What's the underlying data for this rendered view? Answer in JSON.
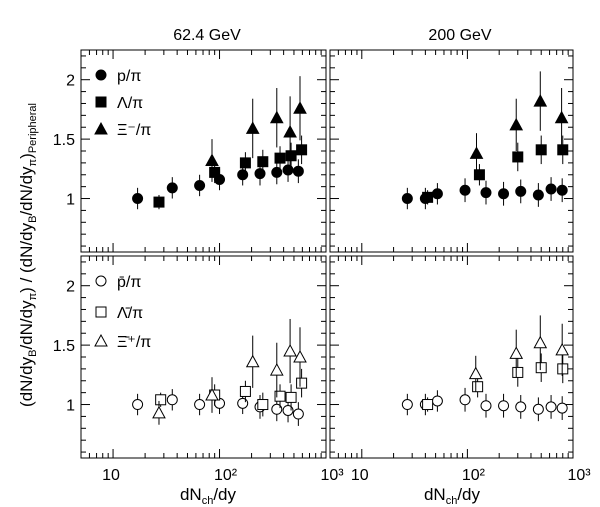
{
  "figure": {
    "ylabel_main": "(dN/dy",
    "ylabel_sub_B": "B",
    "ylabel_mid": "/dN/dy",
    "ylabel_sub_pi": "π",
    "ylabel_mid2": ") / (dN/dy",
    "ylabel_sub_B2": "B",
    "ylabel_mid3": "/dN/dy",
    "ylabel_sub_pi2": "π",
    "ylabel_end": ")",
    "ylabel_sub_periph": "Peripheral",
    "xlabel_main": "dN",
    "xlabel_sub": "ch",
    "xlabel_end": "/dy"
  },
  "chart_data": [
    {
      "type": "scatter",
      "panel": "top-left",
      "title": "62.4 GeV",
      "x_scale": "log",
      "xlim": [
        5,
        1000
      ],
      "ylim": [
        0.55,
        2.25
      ],
      "x_ticks": [
        "10",
        "10²",
        "10³"
      ],
      "y_ticks": [
        "1",
        "1.5",
        "2"
      ],
      "legend_placement": "top-left",
      "series": [
        {
          "name": "p/π",
          "marker": "filled-circle",
          "x": [
            17,
            36,
            65,
            100,
            165,
            240,
            345,
            440,
            550
          ],
          "y": [
            1.0,
            1.09,
            1.11,
            1.16,
            1.2,
            1.21,
            1.22,
            1.24,
            1.23
          ],
          "err": [
            0.09,
            0.09,
            0.09,
            0.09,
            0.09,
            0.1,
            0.1,
            0.1,
            0.1
          ]
        },
        {
          "name": "Λ/π",
          "marker": "filled-square",
          "x": [
            27,
            90,
            175,
            255,
            370,
            470,
            590
          ],
          "y": [
            0.97,
            1.22,
            1.3,
            1.31,
            1.34,
            1.36,
            1.41
          ],
          "err": [
            0.06,
            0.09,
            0.09,
            0.1,
            0.1,
            0.11,
            0.12
          ]
        },
        {
          "name": "Ξ⁻/π",
          "marker": "filled-triangle",
          "x": [
            85,
            205,
            345,
            460,
            570
          ],
          "y": [
            1.32,
            1.59,
            1.68,
            1.56,
            1.76
          ],
          "err": [
            0.18,
            0.25,
            0.25,
            0.3,
            0.27
          ]
        }
      ]
    },
    {
      "type": "scatter",
      "panel": "top-right",
      "title": "200 GeV",
      "x_scale": "log",
      "xlim": [
        5,
        1000
      ],
      "ylim": [
        0.55,
        2.25
      ],
      "x_ticks": [
        "10",
        "10²",
        "10³"
      ],
      "y_ticks": [
        "1",
        "1.5",
        "2"
      ],
      "series": [
        {
          "name": "p/π",
          "marker": "filled-circle",
          "x": [
            27,
            40,
            52,
            95,
            150,
            220,
            320,
            470,
            620,
            790
          ],
          "y": [
            1.0,
            1.0,
            1.04,
            1.07,
            1.05,
            1.04,
            1.06,
            1.03,
            1.08,
            1.07
          ],
          "err": [
            0.09,
            0.09,
            0.09,
            0.1,
            0.1,
            0.1,
            0.1,
            0.1,
            0.1,
            0.1
          ]
        },
        {
          "name": "Λ/π",
          "marker": "filled-square",
          "x": [
            42,
            130,
            300,
            500,
            800
          ],
          "y": [
            1.01,
            1.2,
            1.35,
            1.41,
            1.41
          ],
          "err": [
            0.06,
            0.09,
            0.12,
            0.12,
            0.12
          ]
        },
        {
          "name": "Ξ⁻/π",
          "marker": "filled-triangle",
          "x": [
            122,
            290,
            490,
            780
          ],
          "y": [
            1.38,
            1.62,
            1.82,
            1.68
          ],
          "err": [
            0.17,
            0.22,
            0.25,
            0.25
          ]
        }
      ]
    },
    {
      "type": "scatter",
      "panel": "bottom-left",
      "x_scale": "log",
      "xlim": [
        5,
        1000
      ],
      "ylim": [
        0.55,
        2.25
      ],
      "x_ticks": [
        "10",
        "10²",
        "10³"
      ],
      "y_ticks": [
        "1",
        "1.5",
        "2"
      ],
      "legend_placement": "top-left",
      "series": [
        {
          "name": "p̄/π",
          "marker": "open-circle",
          "x": [
            17,
            36,
            65,
            100,
            165,
            240,
            345,
            440,
            550
          ],
          "y": [
            1.0,
            1.04,
            1.0,
            1.01,
            1.01,
            0.98,
            0.96,
            0.95,
            0.92
          ],
          "err": [
            0.09,
            0.09,
            0.09,
            0.09,
            0.09,
            0.1,
            0.1,
            0.1,
            0.1
          ]
        },
        {
          "name": "Λ̄/π",
          "marker": "open-square",
          "x": [
            28,
            90,
            175,
            255,
            370,
            470,
            590
          ],
          "y": [
            1.04,
            1.08,
            1.11,
            1.0,
            1.07,
            1.06,
            1.18
          ],
          "err": [
            0.06,
            0.09,
            0.09,
            0.1,
            0.1,
            0.11,
            0.12
          ]
        },
        {
          "name": "Ξ̄⁺/π",
          "marker": "open-triangle",
          "x": [
            27,
            85,
            205,
            345,
            460,
            570
          ],
          "y": [
            0.93,
            1.08,
            1.36,
            1.29,
            1.45,
            1.4
          ],
          "err": [
            0.1,
            0.15,
            0.22,
            0.23,
            0.27,
            0.25
          ]
        }
      ]
    },
    {
      "type": "scatter",
      "panel": "bottom-right",
      "x_scale": "log",
      "xlim": [
        5,
        1000
      ],
      "ylim": [
        0.55,
        2.25
      ],
      "x_ticks": [
        "10",
        "10²",
        "10³"
      ],
      "y_ticks": [
        "1",
        "1.5",
        "2"
      ],
      "series": [
        {
          "name": "p̄/π",
          "marker": "open-circle",
          "x": [
            27,
            40,
            52,
            95,
            150,
            220,
            320,
            470,
            620,
            790
          ],
          "y": [
            1.0,
            1.0,
            1.03,
            1.04,
            0.99,
            0.99,
            0.98,
            0.96,
            0.98,
            0.97
          ],
          "err": [
            0.09,
            0.09,
            0.09,
            0.1,
            0.1,
            0.1,
            0.1,
            0.1,
            0.1,
            0.1
          ]
        },
        {
          "name": "Λ̄/π",
          "marker": "open-square",
          "x": [
            42,
            125,
            300,
            500,
            800
          ],
          "y": [
            1.0,
            1.15,
            1.27,
            1.31,
            1.3
          ],
          "err": [
            0.06,
            0.09,
            0.12,
            0.12,
            0.12
          ]
        },
        {
          "name": "Ξ̄⁺/π",
          "marker": "open-triangle",
          "x": [
            120,
            290,
            490,
            790
          ],
          "y": [
            1.26,
            1.43,
            1.52,
            1.46
          ],
          "err": [
            0.15,
            0.2,
            0.23,
            0.22
          ]
        }
      ]
    }
  ]
}
